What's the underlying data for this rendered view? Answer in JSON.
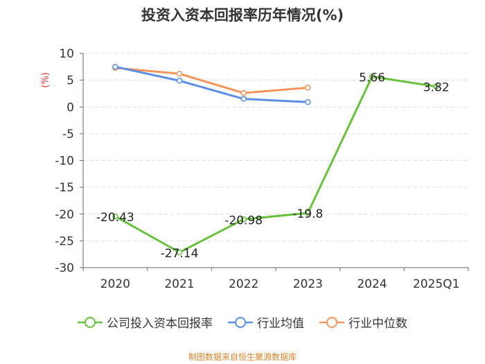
{
  "chart_data": {
    "type": "line",
    "title": "投资入资本回报率历年情况(%)",
    "y_unit": "(%)",
    "categories": [
      "2020",
      "2021",
      "2022",
      "2023",
      "2024",
      "2025Q1"
    ],
    "ylim": [
      -30,
      10
    ],
    "yticks": [
      10,
      5,
      0,
      -5,
      -10,
      -15,
      -20,
      -25,
      -30
    ],
    "grid": true,
    "legend_position": "bottom",
    "series": [
      {
        "name": "公司投入资本回报率",
        "color": "#66c23a",
        "values": [
          -20.43,
          -27.14,
          -20.98,
          -19.8,
          5.66,
          3.82
        ],
        "labels": [
          "-20.43",
          "-27.14",
          "-20.98",
          "-19.8",
          "5.66",
          "3.82"
        ]
      },
      {
        "name": "行业均值",
        "color": "#5b8ee6",
        "values": [
          7.5,
          4.9,
          1.5,
          0.9,
          null,
          null
        ]
      },
      {
        "name": "行业中位数",
        "color": "#f7945a",
        "values": [
          7.3,
          6.2,
          2.6,
          3.6,
          null,
          null
        ]
      }
    ]
  },
  "footer": {
    "source": "制图数据来自恒生聚源数据库"
  }
}
